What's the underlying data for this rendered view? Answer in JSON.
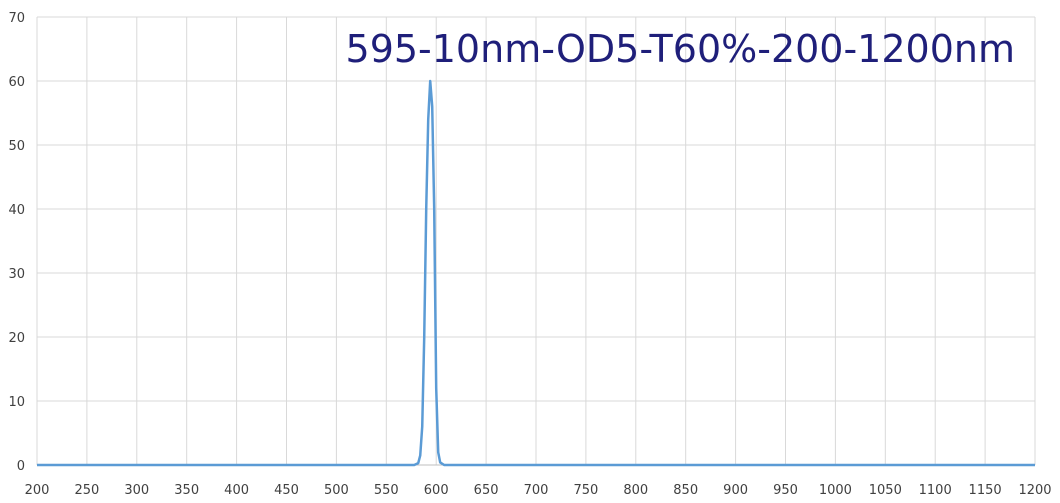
{
  "chart_data": {
    "type": "line",
    "title": "595-10nm-OD5-T60%-200-1200nm",
    "xlabel": "",
    "ylabel": "",
    "xlim": [
      200,
      1200
    ],
    "ylim": [
      0,
      70
    ],
    "x_ticks": [
      200,
      250,
      300,
      350,
      400,
      450,
      500,
      550,
      600,
      650,
      700,
      750,
      800,
      850,
      900,
      950,
      1000,
      1050,
      1100,
      1150,
      1200
    ],
    "y_ticks": [
      0,
      10,
      20,
      30,
      40,
      50,
      60,
      70
    ],
    "grid": true,
    "legend": "none",
    "series_color": "#5b9bd5",
    "series": [
      {
        "x": [
          200,
          300,
          400,
          500,
          560,
          578,
          582,
          584,
          586,
          588,
          590,
          592,
          594,
          596,
          598,
          600,
          602,
          604,
          608,
          620,
          700,
          800,
          900,
          1000,
          1100,
          1200
        ],
        "y": [
          0,
          0,
          0,
          0,
          0,
          0,
          0.3,
          1.5,
          6,
          20,
          40,
          54,
          60,
          56,
          40,
          12,
          2,
          0.4,
          0,
          0,
          0,
          0,
          0,
          0,
          0,
          0
        ]
      }
    ]
  }
}
